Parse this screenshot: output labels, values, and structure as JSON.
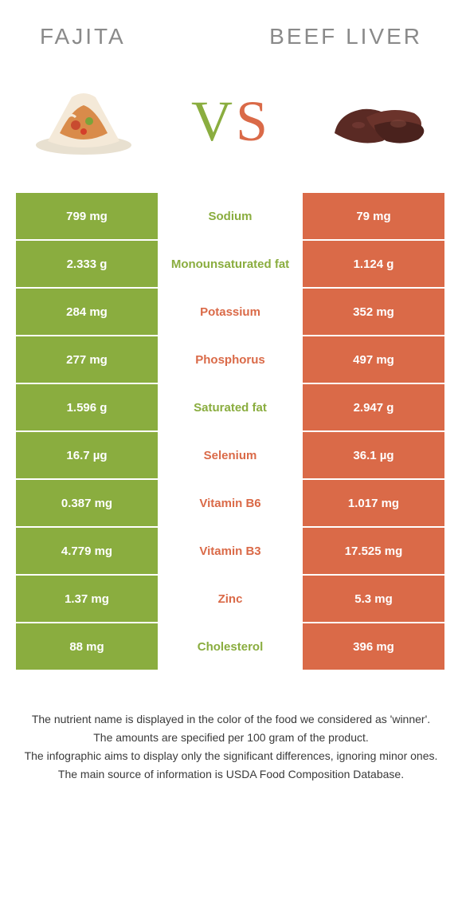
{
  "colors": {
    "left_food": "#8aad3f",
    "right_food": "#da6a48",
    "left_cell_bg": "#8aad3f",
    "right_cell_bg": "#da6a48",
    "cell_text": "#ffffff",
    "title_gray": "#8a8a8a",
    "footer_text": "#3a3a3a"
  },
  "header": {
    "left_title": "Fajita",
    "right_title": "Beef Liver"
  },
  "vs": {
    "v": "V",
    "s": "S"
  },
  "rows": [
    {
      "left": "799 mg",
      "label": "Sodium",
      "right": "79 mg",
      "winner": "left"
    },
    {
      "left": "2.333 g",
      "label": "Monounsaturated fat",
      "right": "1.124 g",
      "winner": "left"
    },
    {
      "left": "284 mg",
      "label": "Potassium",
      "right": "352 mg",
      "winner": "right"
    },
    {
      "left": "277 mg",
      "label": "Phosphorus",
      "right": "497 mg",
      "winner": "right"
    },
    {
      "left": "1.596 g",
      "label": "Saturated fat",
      "right": "2.947 g",
      "winner": "left"
    },
    {
      "left": "16.7 µg",
      "label": "Selenium",
      "right": "36.1 µg",
      "winner": "right"
    },
    {
      "left": "0.387 mg",
      "label": "Vitamin B6",
      "right": "1.017 mg",
      "winner": "right"
    },
    {
      "left": "4.779 mg",
      "label": "Vitamin B3",
      "right": "17.525 mg",
      "winner": "right"
    },
    {
      "left": "1.37 mg",
      "label": "Zinc",
      "right": "5.3 mg",
      "winner": "right"
    },
    {
      "left": "88 mg",
      "label": "Cholesterol",
      "right": "396 mg",
      "winner": "left"
    }
  ],
  "footer": {
    "line1": "The nutrient name is displayed in the color of the food we considered as 'winner'.",
    "line2": "The amounts are specified per 100 gram of the product.",
    "line3": "The infographic aims to display only the significant differences, ignoring minor ones.",
    "line4": "The main source of information is USDA Food Composition Database."
  }
}
